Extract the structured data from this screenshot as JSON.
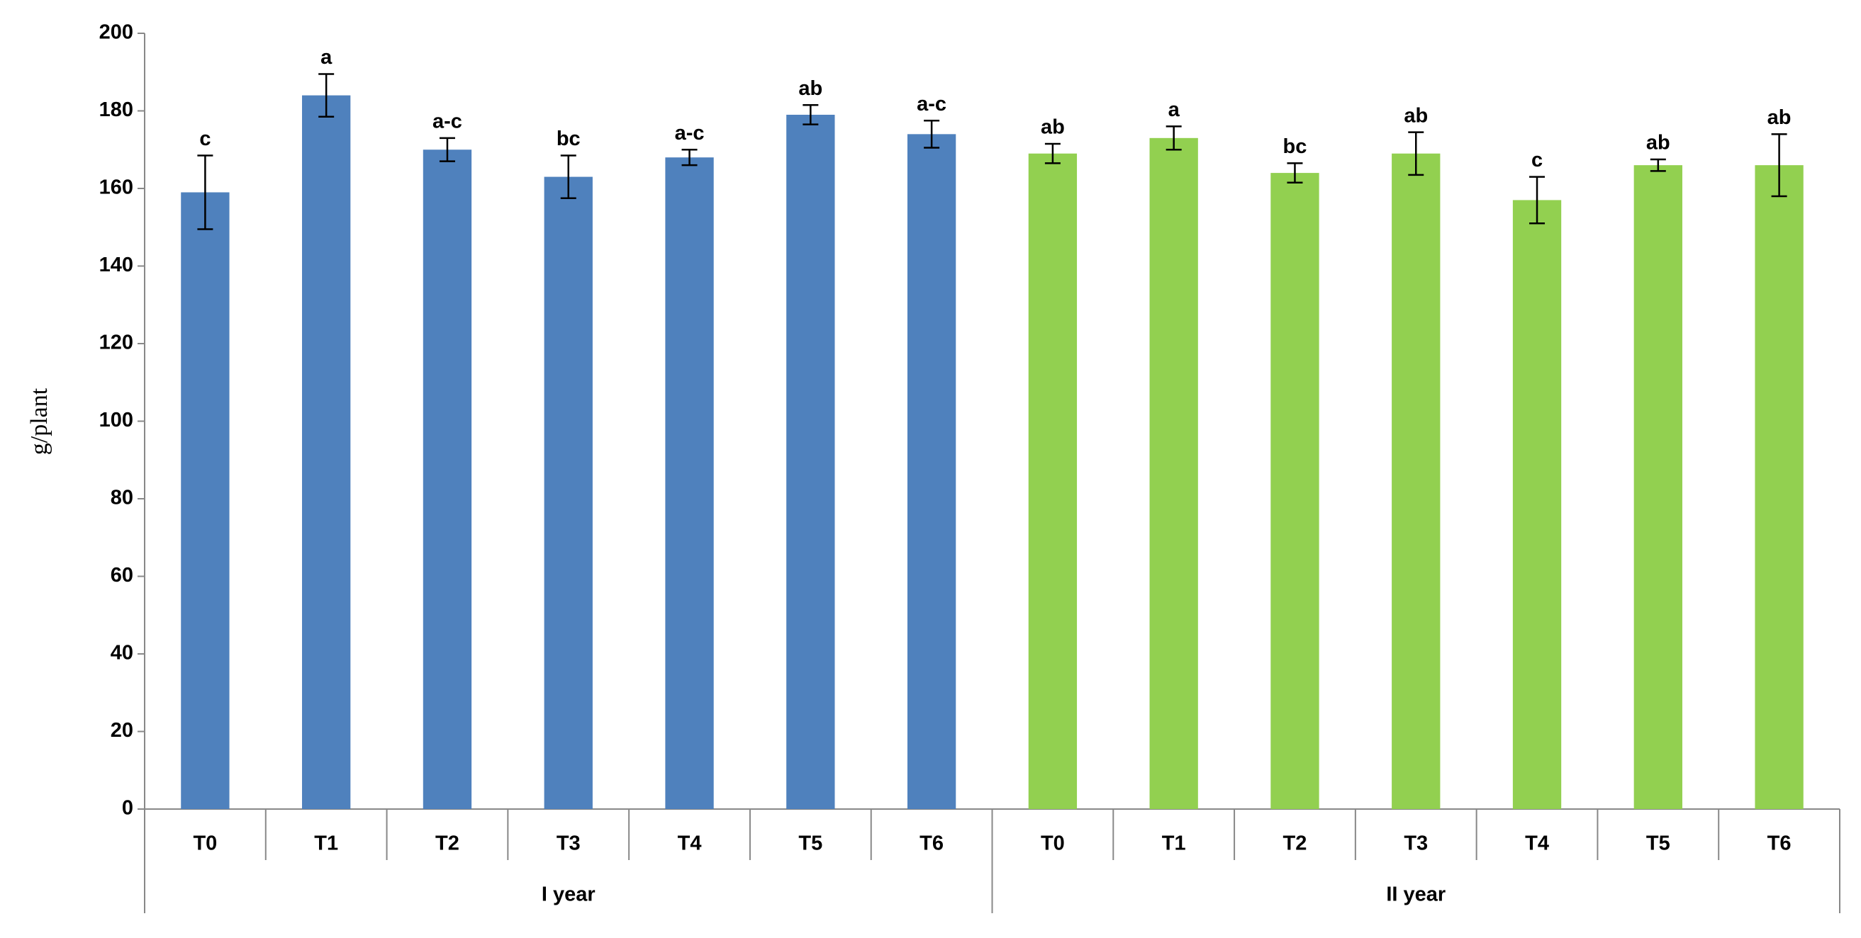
{
  "chart_data": {
    "type": "bar",
    "y_label": "g/plant",
    "ylim": [
      0,
      200
    ],
    "yticks": [
      0,
      20,
      40,
      60,
      80,
      100,
      120,
      140,
      160,
      180,
      200
    ],
    "groups": [
      {
        "name": "I year",
        "color": "#4f81bd",
        "categories": [
          "T0",
          "T1",
          "T2",
          "T3",
          "T4",
          "T5",
          "T6"
        ],
        "values": [
          159,
          184,
          170,
          163,
          168,
          179,
          174
        ],
        "errors": [
          9.5,
          5.5,
          3,
          5.5,
          2,
          2.5,
          3.5
        ],
        "letters": [
          "c",
          "a",
          "a-c",
          "bc",
          "a-c",
          "ab",
          "a-c"
        ]
      },
      {
        "name": "II year",
        "color": "#92d050",
        "categories": [
          "T0",
          "T1",
          "T2",
          "T3",
          "T4",
          "T5",
          "T6"
        ],
        "values": [
          169,
          173,
          164,
          169,
          157,
          166,
          166
        ],
        "errors": [
          2.5,
          3,
          2.5,
          5.5,
          6,
          1.5,
          8
        ],
        "letters": [
          "ab",
          "a",
          "bc",
          "ab",
          "c",
          "ab",
          "ab"
        ]
      }
    ]
  }
}
